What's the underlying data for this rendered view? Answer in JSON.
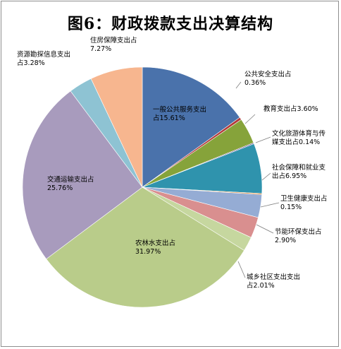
{
  "chart_data": {
    "type": "pie",
    "title": "图6：财政拨款支出决算结构",
    "slices": [
      {
        "line1": "一般公共服务支出",
        "line2": "占15.61%",
        "value": 15.61,
        "color": "#4a72ab"
      },
      {
        "line1": "公共安全支出占",
        "line2": "0.36%",
        "value": 0.36,
        "color": "#b33a3a"
      },
      {
        "line1": "教育支出占3.60%",
        "line2": "",
        "value": 3.6,
        "color": "#86a33a"
      },
      {
        "line1": "文化旅游体育与传",
        "line2": "媒支出占0.14%",
        "value": 0.14,
        "color": "#5b3f86"
      },
      {
        "line1": "社会保障和就业支",
        "line2": "出占6.95%",
        "value": 6.95,
        "color": "#2f93ad"
      },
      {
        "line1": "卫生健康支出占",
        "line2": "0.15%",
        "value": 0.15,
        "color": "#e08a35"
      },
      {
        "line1": "",
        "line2": "",
        "value": 3.18,
        "color": "#95acd4"
      },
      {
        "line1": "节能环保支出占",
        "line2": "2.90%",
        "value": 2.9,
        "color": "#d98f8f"
      },
      {
        "line1": "城乡社区支出支出",
        "line2": "占2.01%",
        "value": 2.01,
        "color": "#c6d79f"
      },
      {
        "line1": "农林水支出占",
        "line2": "31.97%",
        "value": 31.97,
        "color": "#b9cc8a"
      },
      {
        "line1": "交通运输支出占",
        "line2": "25.76%",
        "value": 25.76,
        "color": "#a89bbd"
      },
      {
        "line1": "资源勘探信息支出",
        "line2": "占3.28%",
        "value": 3.28,
        "color": "#8ec3d3"
      },
      {
        "line1": "住房保障支出占",
        "line2": "7.27%",
        "value": 7.27,
        "color": "#f7b68f"
      }
    ]
  }
}
